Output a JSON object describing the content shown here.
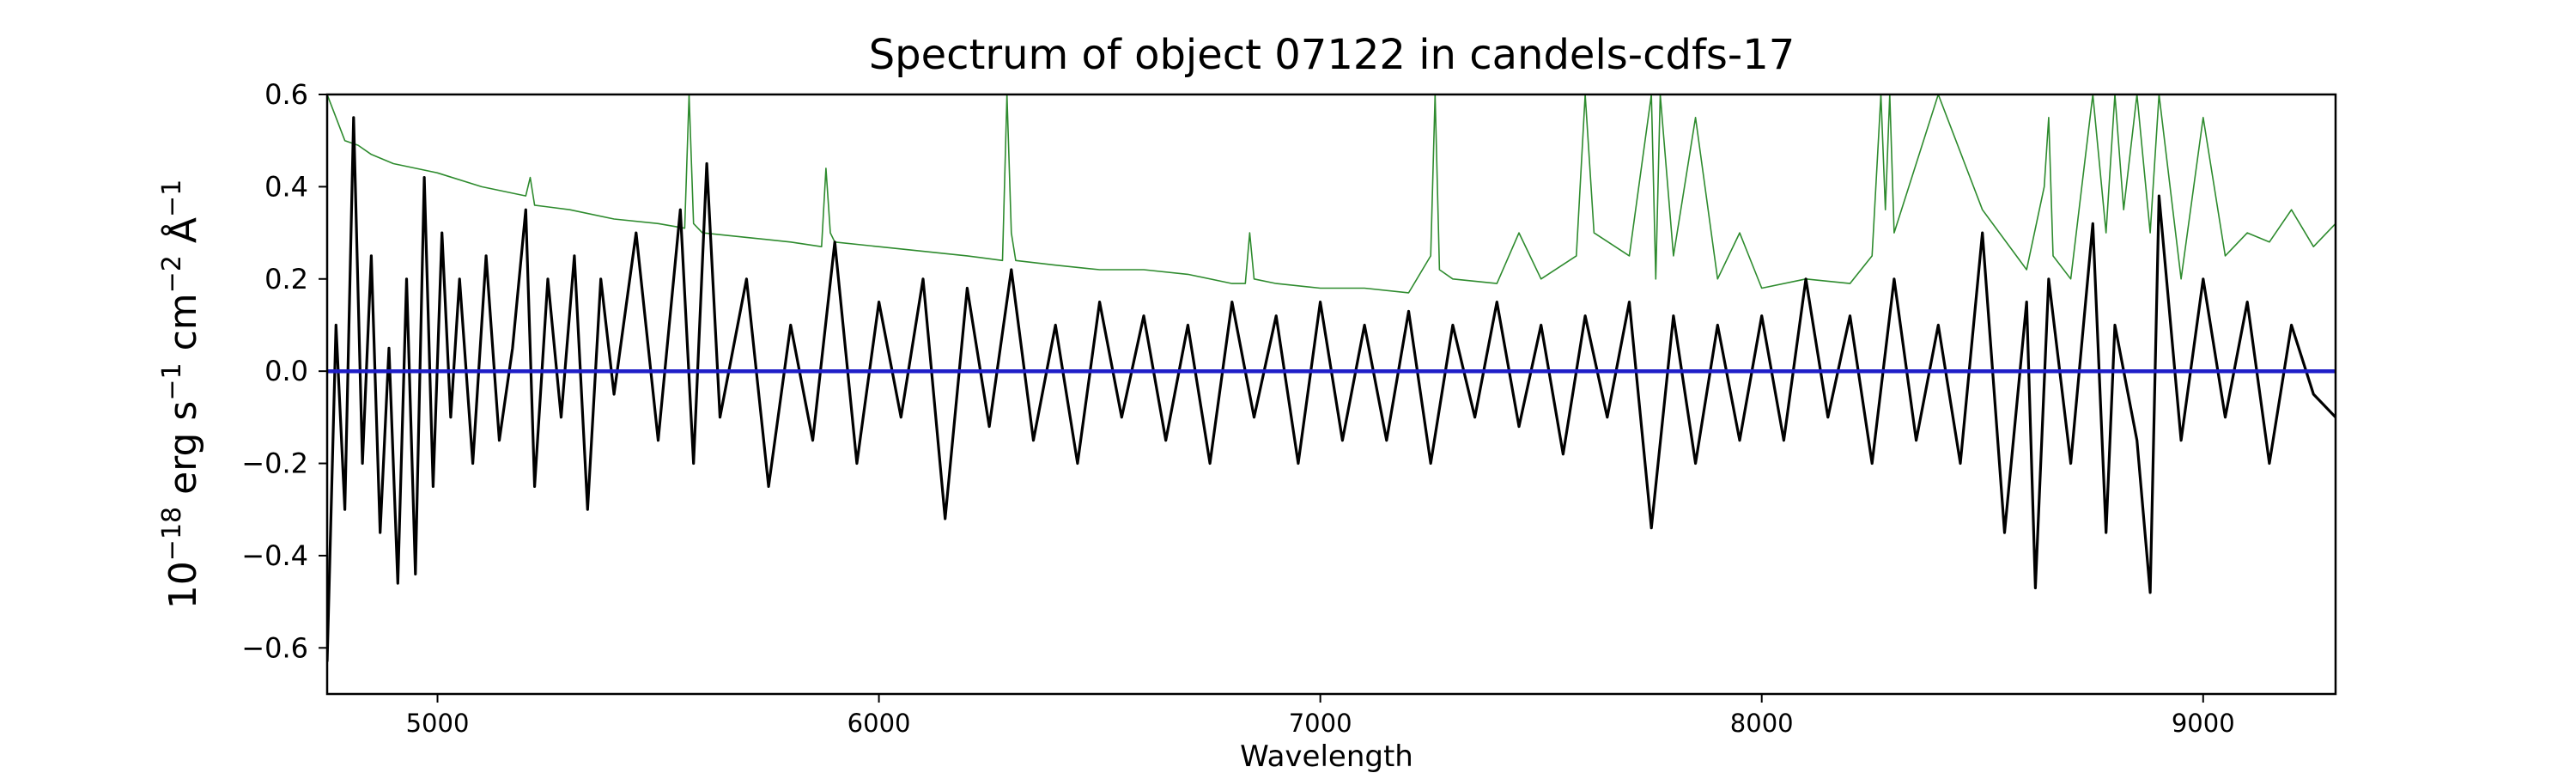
{
  "chart_data": {
    "type": "line",
    "title": "Spectrum of object 07122 in candels-cdfs-17",
    "xlabel": "Wavelength",
    "ylabel_parts": {
      "base": "10",
      "exp1": "−18",
      "erg": " erg s",
      "exp2": "−1",
      "cm": " cm",
      "exp3": "−2",
      "angstrom": " Å",
      "exp4": "−1"
    },
    "xlim": [
      4750,
      9300
    ],
    "ylim": [
      -0.7,
      0.6
    ],
    "xticks": [
      5000,
      6000,
      7000,
      8000,
      9000
    ],
    "xtick_labels": [
      "5000",
      "6000",
      "7000",
      "8000",
      "9000"
    ],
    "yticks": [
      -0.6,
      -0.4,
      -0.2,
      0.0,
      0.2,
      0.4,
      0.6
    ],
    "ytick_labels": [
      "−0.6",
      "−0.4",
      "−0.2",
      "0.0",
      "0.2",
      "0.4",
      "0.6"
    ],
    "grid": false,
    "series": [
      {
        "role": "flux",
        "color": "#000000",
        "x": [
          4750,
          4770,
          4790,
          4810,
          4830,
          4850,
          4870,
          4890,
          4910,
          4930,
          4950,
          4970,
          4990,
          5010,
          5030,
          5050,
          5080,
          5110,
          5140,
          5170,
          5200,
          5220,
          5250,
          5280,
          5310,
          5340,
          5370,
          5400,
          5450,
          5500,
          5550,
          5580,
          5610,
          5640,
          5700,
          5750,
          5800,
          5850,
          5900,
          5950,
          6000,
          6050,
          6100,
          6150,
          6200,
          6250,
          6300,
          6350,
          6400,
          6450,
          6500,
          6550,
          6600,
          6650,
          6700,
          6750,
          6800,
          6850,
          6900,
          6950,
          7000,
          7050,
          7100,
          7150,
          7200,
          7250,
          7300,
          7350,
          7400,
          7450,
          7500,
          7550,
          7600,
          7650,
          7700,
          7750,
          7800,
          7850,
          7900,
          7950,
          8000,
          8050,
          8100,
          8150,
          8200,
          8250,
          8300,
          8350,
          8400,
          8450,
          8500,
          8550,
          8600,
          8620,
          8650,
          8700,
          8750,
          8780,
          8800,
          8850,
          8880,
          8900,
          8950,
          9000,
          9050,
          9100,
          9150,
          9200,
          9250,
          9300
        ],
        "y": [
          -0.63,
          0.1,
          -0.3,
          0.55,
          -0.2,
          0.25,
          -0.35,
          0.05,
          -0.46,
          0.2,
          -0.44,
          0.42,
          -0.25,
          0.3,
          -0.1,
          0.2,
          -0.2,
          0.25,
          -0.15,
          0.05,
          0.35,
          -0.25,
          0.2,
          -0.1,
          0.25,
          -0.3,
          0.2,
          -0.05,
          0.3,
          -0.15,
          0.35,
          -0.2,
          0.45,
          -0.1,
          0.2,
          -0.25,
          0.1,
          -0.15,
          0.28,
          -0.2,
          0.15,
          -0.1,
          0.2,
          -0.32,
          0.18,
          -0.12,
          0.22,
          -0.15,
          0.1,
          -0.2,
          0.15,
          -0.1,
          0.12,
          -0.15,
          0.1,
          -0.2,
          0.15,
          -0.1,
          0.12,
          -0.2,
          0.15,
          -0.15,
          0.1,
          -0.15,
          0.13,
          -0.2,
          0.1,
          -0.1,
          0.15,
          -0.12,
          0.1,
          -0.18,
          0.12,
          -0.1,
          0.15,
          -0.34,
          0.12,
          -0.2,
          0.1,
          -0.15,
          0.12,
          -0.15,
          0.2,
          -0.1,
          0.12,
          -0.2,
          0.2,
          -0.15,
          0.1,
          -0.2,
          0.3,
          -0.35,
          0.15,
          -0.47,
          0.2,
          -0.2,
          0.32,
          -0.35,
          0.1,
          -0.15,
          -0.48,
          0.38,
          -0.15,
          0.2,
          -0.1,
          0.15,
          -0.2,
          0.1,
          -0.05,
          -0.1
        ]
      },
      {
        "role": "error",
        "color": "#2e8b2e",
        "x": [
          4750,
          4770,
          4790,
          4820,
          4850,
          4900,
          4950,
          5000,
          5100,
          5200,
          5210,
          5220,
          5300,
          5400,
          5500,
          5560,
          5570,
          5580,
          5600,
          5700,
          5800,
          5870,
          5880,
          5890,
          5900,
          6000,
          6100,
          6200,
          6280,
          6290,
          6300,
          6310,
          6400,
          6500,
          6600,
          6700,
          6800,
          6830,
          6840,
          6850,
          6900,
          7000,
          7100,
          7200,
          7250,
          7260,
          7270,
          7300,
          7400,
          7450,
          7500,
          7580,
          7600,
          7620,
          7700,
          7750,
          7760,
          7770,
          7800,
          7850,
          7900,
          7950,
          8000,
          8100,
          8200,
          8250,
          8270,
          8280,
          8290,
          8300,
          8400,
          8500,
          8600,
          8640,
          8650,
          8660,
          8700,
          8750,
          8780,
          8800,
          8820,
          8850,
          8880,
          8900,
          8950,
          9000,
          9050,
          9100,
          9150,
          9200,
          9250,
          9300
        ],
        "y": [
          0.6,
          0.55,
          0.5,
          0.49,
          0.47,
          0.45,
          0.44,
          0.43,
          0.4,
          0.38,
          0.42,
          0.36,
          0.35,
          0.33,
          0.32,
          0.31,
          0.6,
          0.32,
          0.3,
          0.29,
          0.28,
          0.27,
          0.44,
          0.3,
          0.28,
          0.27,
          0.26,
          0.25,
          0.24,
          0.6,
          0.3,
          0.24,
          0.23,
          0.22,
          0.22,
          0.21,
          0.19,
          0.19,
          0.3,
          0.2,
          0.19,
          0.18,
          0.18,
          0.17,
          0.25,
          0.6,
          0.22,
          0.2,
          0.19,
          0.3,
          0.2,
          0.25,
          0.6,
          0.3,
          0.25,
          0.6,
          0.2,
          0.6,
          0.25,
          0.55,
          0.2,
          0.3,
          0.18,
          0.2,
          0.19,
          0.25,
          0.6,
          0.35,
          0.6,
          0.3,
          0.6,
          0.35,
          0.22,
          0.4,
          0.55,
          0.25,
          0.2,
          0.6,
          0.3,
          0.6,
          0.35,
          0.6,
          0.3,
          0.6,
          0.2,
          0.55,
          0.25,
          0.3,
          0.28,
          0.35,
          0.27,
          0.32
        ]
      },
      {
        "role": "zero-model",
        "color": "#1f1fc8",
        "x": [
          4750,
          9300
        ],
        "y": [
          0.0,
          0.0
        ]
      }
    ]
  }
}
